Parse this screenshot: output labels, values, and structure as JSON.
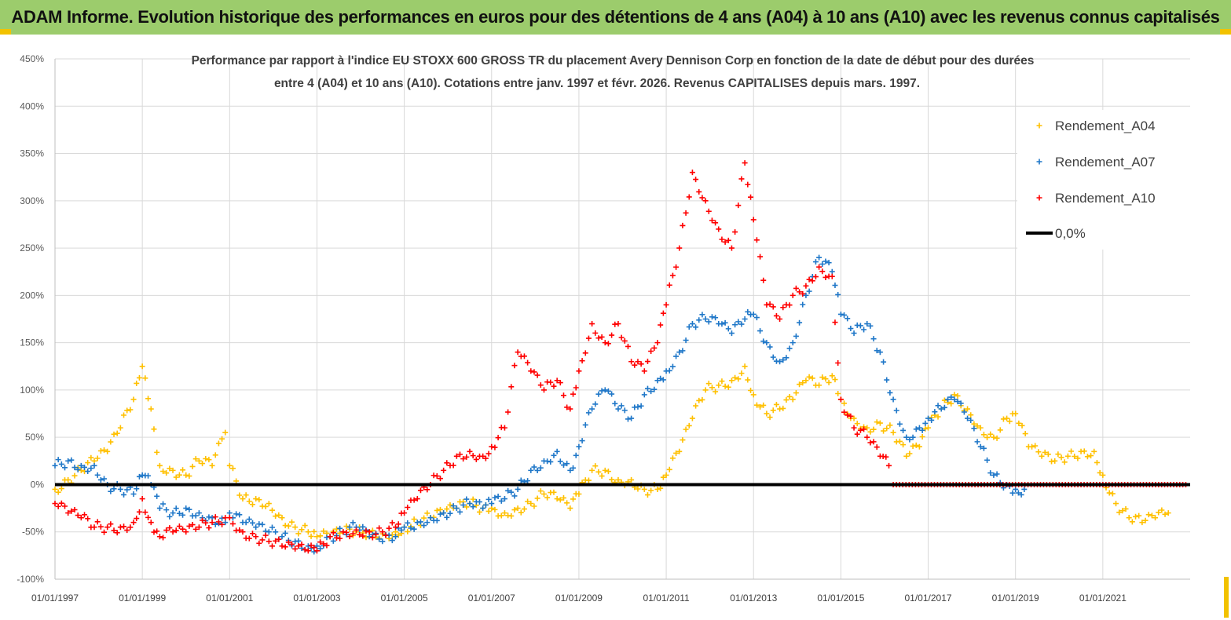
{
  "banner": {
    "title": "ADAM Informe. Evolution historique des performances en euros pour des détentions de 4 ans (A04) à 10 ans (A10) avec les revenus connus capitalisés",
    "color": "#9ccc6c"
  },
  "chart_data": {
    "type": "scatter",
    "title_line1": "Performance par rapport à l'indice EU STOXX 600 GROSS TR  du placement Avery Dennison Corp en fonction de la date de début pour des durées",
    "title_line2": "entre 4 (A04) et 10 ans (A10). Cotations entre janv. 1997 et févr. 2026. Revenus CAPITALISES depuis mars. 1997.",
    "ylim": [
      -100,
      450
    ],
    "xlim": [
      1997.0,
      2023.0
    ],
    "yticks": [
      "-100%",
      "-50%",
      "0%",
      "50%",
      "100%",
      "150%",
      "200%",
      "250%",
      "300%",
      "350%",
      "400%",
      "450%"
    ],
    "xticks": [
      "01/01/1997",
      "01/01/1999",
      "01/01/2001",
      "01/01/2003",
      "01/01/2005",
      "01/01/2007",
      "01/01/2009",
      "01/01/2011",
      "01/01/2013",
      "01/01/2015",
      "01/01/2017",
      "01/01/2019",
      "01/01/2021"
    ],
    "grid": true,
    "legend_position": "top-right",
    "series": [
      {
        "name": "Rendement_A04",
        "color": "#ffc000",
        "marker": "+",
        "points": [
          [
            1997.0,
            -5
          ],
          [
            1997.3,
            5
          ],
          [
            1997.6,
            15
          ],
          [
            1997.9,
            25
          ],
          [
            1998.2,
            35
          ],
          [
            1998.5,
            60
          ],
          [
            1998.8,
            90
          ],
          [
            1999.0,
            125
          ],
          [
            1999.2,
            80
          ],
          [
            1999.4,
            20
          ],
          [
            1999.7,
            15
          ],
          [
            2000.0,
            10
          ],
          [
            2000.3,
            25
          ],
          [
            2000.6,
            20
          ],
          [
            2000.9,
            55
          ],
          [
            2001.0,
            20
          ],
          [
            2001.3,
            -15
          ],
          [
            2001.6,
            -15
          ],
          [
            2001.9,
            -20
          ],
          [
            2002.2,
            -35
          ],
          [
            2002.5,
            -45
          ],
          [
            2002.8,
            -50
          ],
          [
            2003.0,
            -55
          ],
          [
            2003.3,
            -55
          ],
          [
            2003.6,
            -50
          ],
          [
            2003.9,
            -50
          ],
          [
            2004.2,
            -50
          ],
          [
            2004.5,
            -52
          ],
          [
            2004.8,
            -50
          ],
          [
            2005.0,
            -45
          ],
          [
            2005.3,
            -40
          ],
          [
            2005.6,
            -35
          ],
          [
            2005.9,
            -30
          ],
          [
            2006.2,
            -25
          ],
          [
            2006.5,
            -20
          ],
          [
            2006.8,
            -25
          ],
          [
            2007.0,
            -25
          ],
          [
            2007.3,
            -30
          ],
          [
            2007.6,
            -25
          ],
          [
            2007.9,
            -20
          ],
          [
            2008.2,
            -10
          ],
          [
            2008.5,
            -15
          ],
          [
            2008.8,
            -25
          ],
          [
            2009.0,
            -10
          ],
          [
            2009.3,
            15
          ],
          [
            2009.6,
            15
          ],
          [
            2009.9,
            5
          ],
          [
            2010.2,
            5
          ],
          [
            2010.5,
            -5
          ],
          [
            2010.8,
            -5
          ],
          [
            2011.0,
            10
          ],
          [
            2011.3,
            35
          ],
          [
            2011.6,
            70
          ],
          [
            2011.9,
            100
          ],
          [
            2012.2,
            105
          ],
          [
            2012.5,
            110
          ],
          [
            2012.8,
            125
          ],
          [
            2013.0,
            95
          ],
          [
            2013.3,
            75
          ],
          [
            2013.6,
            80
          ],
          [
            2013.9,
            90
          ],
          [
            2014.2,
            110
          ],
          [
            2014.5,
            105
          ],
          [
            2014.8,
            115
          ],
          [
            2015.0,
            90
          ],
          [
            2015.3,
            70
          ],
          [
            2015.6,
            60
          ],
          [
            2015.9,
            65
          ],
          [
            2016.2,
            55
          ],
          [
            2016.5,
            30
          ],
          [
            2016.8,
            40
          ],
          [
            2017.0,
            60
          ],
          [
            2017.3,
            80
          ],
          [
            2017.6,
            95
          ],
          [
            2017.9,
            80
          ],
          [
            2018.2,
            60
          ],
          [
            2018.5,
            50
          ],
          [
            2018.8,
            70
          ],
          [
            2019.0,
            75
          ],
          [
            2019.3,
            40
          ],
          [
            2019.6,
            30
          ],
          [
            2019.9,
            25
          ],
          [
            2020.2,
            30
          ],
          [
            2020.5,
            35
          ],
          [
            2020.8,
            35
          ],
          [
            2021.0,
            10
          ],
          [
            2021.3,
            -20
          ],
          [
            2021.6,
            -35
          ],
          [
            2021.9,
            -40
          ],
          [
            2022.2,
            -35
          ],
          [
            2022.5,
            -30
          ]
        ]
      },
      {
        "name": "Rendement_A07",
        "color": "#1f77c8",
        "marker": "+",
        "points": [
          [
            1997.0,
            20
          ],
          [
            1997.3,
            25
          ],
          [
            1997.6,
            20
          ],
          [
            1997.9,
            20
          ],
          [
            1998.2,
            0
          ],
          [
            1998.5,
            -5
          ],
          [
            1998.8,
            -10
          ],
          [
            1999.0,
            10
          ],
          [
            1999.2,
            0
          ],
          [
            1999.4,
            -25
          ],
          [
            1999.7,
            -30
          ],
          [
            2000.0,
            -25
          ],
          [
            2000.3,
            -30
          ],
          [
            2000.6,
            -35
          ],
          [
            2000.9,
            -40
          ],
          [
            2001.0,
            -30
          ],
          [
            2001.3,
            -40
          ],
          [
            2001.6,
            -45
          ],
          [
            2001.9,
            -50
          ],
          [
            2002.2,
            -55
          ],
          [
            2002.5,
            -60
          ],
          [
            2002.8,
            -65
          ],
          [
            2003.0,
            -65
          ],
          [
            2003.3,
            -55
          ],
          [
            2003.6,
            -50
          ],
          [
            2003.9,
            -45
          ],
          [
            2004.2,
            -55
          ],
          [
            2004.5,
            -60
          ],
          [
            2004.8,
            -55
          ],
          [
            2005.0,
            -45
          ],
          [
            2005.3,
            -40
          ],
          [
            2005.6,
            -35
          ],
          [
            2005.9,
            -30
          ],
          [
            2006.2,
            -25
          ],
          [
            2006.5,
            -20
          ],
          [
            2006.8,
            -25
          ],
          [
            2007.0,
            -20
          ],
          [
            2007.3,
            -15
          ],
          [
            2007.6,
            -5
          ],
          [
            2007.9,
            15
          ],
          [
            2008.2,
            25
          ],
          [
            2008.5,
            35
          ],
          [
            2008.8,
            15
          ],
          [
            2009.0,
            40
          ],
          [
            2009.3,
            80
          ],
          [
            2009.6,
            100
          ],
          [
            2009.9,
            80
          ],
          [
            2010.2,
            70
          ],
          [
            2010.5,
            95
          ],
          [
            2010.8,
            110
          ],
          [
            2011.0,
            120
          ],
          [
            2011.3,
            140
          ],
          [
            2011.6,
            170
          ],
          [
            2011.9,
            175
          ],
          [
            2012.2,
            170
          ],
          [
            2012.5,
            160
          ],
          [
            2012.8,
            175
          ],
          [
            2013.0,
            180
          ],
          [
            2013.3,
            150
          ],
          [
            2013.6,
            130
          ],
          [
            2013.9,
            150
          ],
          [
            2014.2,
            200
          ],
          [
            2014.5,
            240
          ],
          [
            2014.8,
            225
          ],
          [
            2015.0,
            180
          ],
          [
            2015.3,
            160
          ],
          [
            2015.6,
            170
          ],
          [
            2015.9,
            140
          ],
          [
            2016.2,
            90
          ],
          [
            2016.5,
            50
          ],
          [
            2016.8,
            60
          ],
          [
            2017.0,
            70
          ],
          [
            2017.3,
            80
          ],
          [
            2017.6,
            90
          ],
          [
            2017.9,
            70
          ],
          [
            2018.2,
            40
          ],
          [
            2018.5,
            10
          ],
          [
            2018.8,
            0
          ],
          [
            2019.0,
            -5
          ],
          [
            2019.2,
            -5
          ]
        ]
      },
      {
        "name": "Rendement_A10",
        "color": "#ff0000",
        "marker": "+",
        "points": [
          [
            1997.0,
            -20
          ],
          [
            1997.3,
            -30
          ],
          [
            1997.6,
            -35
          ],
          [
            1997.9,
            -45
          ],
          [
            1998.2,
            -45
          ],
          [
            1998.5,
            -45
          ],
          [
            1998.8,
            -40
          ],
          [
            1999.0,
            -15
          ],
          [
            1999.2,
            -40
          ],
          [
            1999.4,
            -55
          ],
          [
            1999.7,
            -50
          ],
          [
            2000.0,
            -50
          ],
          [
            2000.3,
            -45
          ],
          [
            2000.6,
            -40
          ],
          [
            2000.9,
            -35
          ],
          [
            2001.0,
            -35
          ],
          [
            2001.3,
            -50
          ],
          [
            2001.6,
            -55
          ],
          [
            2001.9,
            -60
          ],
          [
            2002.2,
            -65
          ],
          [
            2002.5,
            -68
          ],
          [
            2002.8,
            -70
          ],
          [
            2003.0,
            -70
          ],
          [
            2003.3,
            -55
          ],
          [
            2003.6,
            -50
          ],
          [
            2003.9,
            -48
          ],
          [
            2004.2,
            -50
          ],
          [
            2004.5,
            -50
          ],
          [
            2004.8,
            -45
          ],
          [
            2005.0,
            -30
          ],
          [
            2005.3,
            -15
          ],
          [
            2005.6,
            0
          ],
          [
            2005.9,
            15
          ],
          [
            2006.2,
            30
          ],
          [
            2006.5,
            35
          ],
          [
            2006.8,
            30
          ],
          [
            2007.0,
            40
          ],
          [
            2007.3,
            60
          ],
          [
            2007.6,
            140
          ],
          [
            2007.9,
            120
          ],
          [
            2008.2,
            100
          ],
          [
            2008.5,
            110
          ],
          [
            2008.8,
            80
          ],
          [
            2009.0,
            120
          ],
          [
            2009.3,
            170
          ],
          [
            2009.6,
            150
          ],
          [
            2009.9,
            170
          ],
          [
            2010.2,
            130
          ],
          [
            2010.5,
            120
          ],
          [
            2010.8,
            150
          ],
          [
            2011.0,
            190
          ],
          [
            2011.3,
            250
          ],
          [
            2011.6,
            330
          ],
          [
            2011.9,
            300
          ],
          [
            2012.2,
            270
          ],
          [
            2012.5,
            250
          ],
          [
            2012.8,
            340
          ],
          [
            2013.0,
            280
          ],
          [
            2013.3,
            190
          ],
          [
            2013.6,
            175
          ],
          [
            2013.9,
            200
          ],
          [
            2014.2,
            210
          ],
          [
            2014.5,
            230
          ],
          [
            2014.8,
            220
          ],
          [
            2015.0,
            90
          ],
          [
            2015.3,
            60
          ],
          [
            2015.6,
            50
          ],
          [
            2015.9,
            30
          ],
          [
            2016.1,
            20
          ],
          [
            2016.2,
            0
          ],
          [
            2017.0,
            0
          ],
          [
            2018.0,
            0
          ],
          [
            2019.0,
            0
          ],
          [
            2020.0,
            0
          ],
          [
            2021.0,
            0
          ],
          [
            2022.0,
            0
          ],
          [
            2022.9,
            0
          ]
        ]
      }
    ],
    "reference_line": {
      "name": "0,0%",
      "value": 0,
      "color": "#000000"
    }
  }
}
